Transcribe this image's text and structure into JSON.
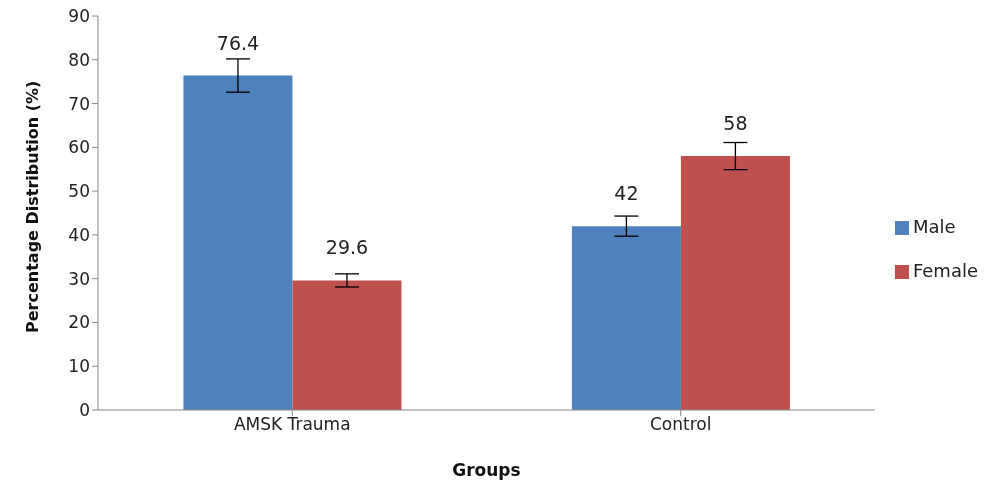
{
  "chart_data": {
    "type": "bar",
    "xlabel": "Groups",
    "ylabel": "Percentage Distribution  (%)",
    "categories": [
      "AMSK Trauma",
      "Control"
    ],
    "series": [
      {
        "name": "Male",
        "color": "#4f81bd",
        "values": [
          76.4,
          42
        ],
        "errors": [
          3.8,
          2.3
        ]
      },
      {
        "name": "Female",
        "color": "#c0504d",
        "values": [
          29.6,
          58
        ],
        "errors": [
          1.5,
          3.1
        ]
      }
    ],
    "ylim": [
      0,
      90
    ],
    "yticks": [
      0,
      10,
      20,
      30,
      40,
      50,
      60,
      70,
      80,
      90
    ],
    "grid": false,
    "legend": "right",
    "data_labels": true
  }
}
